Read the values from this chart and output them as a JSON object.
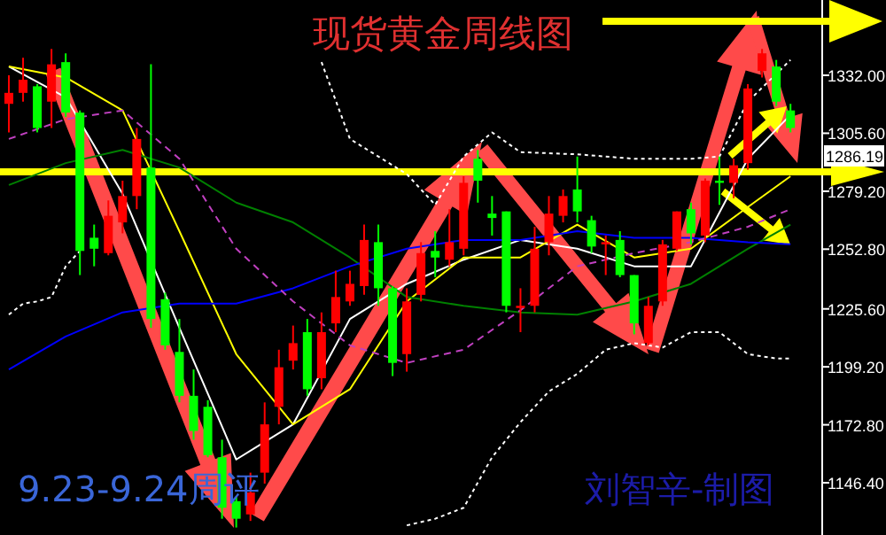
{
  "chart_data": {
    "type": "candlestick",
    "title": "现货黄金周线图",
    "annotations": [
      "9.23-9.24周评",
      "刘智辛-制图",
      "1286.19"
    ],
    "categories": [
      null,
      null,
      null,
      null,
      null,
      null,
      null,
      null,
      null,
      null,
      null,
      null,
      null,
      null,
      null,
      null,
      null,
      null,
      null,
      null,
      null,
      null,
      null,
      null,
      null,
      null,
      null,
      null,
      null,
      null,
      null,
      null,
      null,
      null,
      null,
      null,
      null,
      null,
      null,
      null,
      null,
      null,
      null,
      null,
      null,
      null,
      null,
      null,
      null,
      null,
      null,
      null,
      null,
      null,
      null,
      null
    ],
    "ohlc": [
      [
        1319,
        1332,
        1306,
        1324
      ],
      [
        1324,
        1340,
        1320,
        1330
      ],
      [
        1327,
        1328,
        1306,
        1308
      ],
      [
        1320,
        1344,
        1308,
        1337
      ],
      [
        1338,
        1342,
        1313,
        1315
      ],
      [
        1315,
        1316,
        1241,
        1252
      ],
      [
        1258,
        1264,
        1245,
        1253
      ],
      [
        1251,
        1275,
        1250,
        1268
      ],
      [
        1265,
        1284,
        1260,
        1277
      ],
      [
        1277,
        1308,
        1271,
        1303
      ],
      [
        1290,
        1337,
        1217,
        1221
      ],
      [
        1230,
        1233,
        1207,
        1209
      ],
      [
        1206,
        1221,
        1183,
        1186
      ],
      [
        1186,
        1198,
        1166,
        1170
      ],
      [
        1181,
        1184,
        1158,
        1159
      ],
      [
        1158,
        1166,
        1130,
        1135
      ],
      [
        1138,
        1140,
        1126,
        1130
      ],
      [
        1132,
        1151,
        1129,
        1142
      ],
      [
        1151,
        1183,
        1146,
        1173
      ],
      [
        1181,
        1207,
        1173,
        1199
      ],
      [
        1202,
        1218,
        1198,
        1210
      ],
      [
        1215,
        1221,
        1186,
        1189
      ],
      [
        1194,
        1224,
        1189,
        1215
      ],
      [
        1219,
        1243,
        1215,
        1231
      ],
      [
        1229,
        1243,
        1227,
        1237
      ],
      [
        1236,
        1264,
        1232,
        1257
      ],
      [
        1256,
        1264,
        1227,
        1235
      ],
      [
        1235,
        1236,
        1195,
        1201
      ],
      [
        1205,
        1235,
        1197,
        1229
      ],
      [
        1232,
        1256,
        1229,
        1251
      ],
      [
        1252,
        1261,
        1240,
        1249
      ],
      [
        1248,
        1271,
        1245,
        1256
      ],
      [
        1253,
        1286,
        1250,
        1283
      ],
      [
        1294,
        1298,
        1274,
        1284
      ],
      [
        1269,
        1277,
        1259,
        1267
      ],
      [
        1270,
        1270,
        1224,
        1227
      ],
      [
        1226,
        1235,
        1215,
        1227
      ],
      [
        1227,
        1263,
        1224,
        1253
      ],
      [
        1256,
        1277,
        1250,
        1269
      ],
      [
        1268,
        1280,
        1265,
        1277
      ],
      [
        1280,
        1295,
        1265,
        1270
      ],
      [
        1266,
        1268,
        1251,
        1254
      ],
      [
        1255,
        1259,
        1241,
        1256
      ],
      [
        1257,
        1261,
        1240,
        1241
      ],
      [
        1241,
        1241,
        1214,
        1219
      ],
      [
        1210,
        1231,
        1209,
        1227
      ],
      [
        1229,
        1257,
        1227,
        1255
      ],
      [
        1253,
        1270,
        1252,
        1270
      ],
      [
        1271,
        1274,
        1255,
        1260
      ],
      [
        1259,
        1285,
        1256,
        1284
      ],
      [
        1284,
        1295,
        1273,
        1283
      ],
      [
        1283,
        1294,
        1276,
        1291
      ],
      [
        1292,
        1328,
        1289,
        1326
      ],
      [
        1334,
        1344,
        1331,
        1342
      ],
      [
        1336,
        1339,
        1318,
        1320
      ],
      [
        1316,
        1319,
        1306,
        1308
      ]
    ],
    "colors": [
      "#ff0000",
      "#ff0000",
      "#00ff00",
      "#ff0000",
      "#00ff00",
      "#00ff00",
      "#00ff00",
      "#ff0000",
      "#ff0000",
      "#ff0000",
      "#00ff00",
      "#00ff00",
      "#00ff00",
      "#00ff00",
      "#00ff00",
      "#00ff00",
      "#00ff00",
      "#ff0000",
      "#ff0000",
      "#ff0000",
      "#ff0000",
      "#00ff00",
      "#ff0000",
      "#ff0000",
      "#ff0000",
      "#ff0000",
      "#00ff00",
      "#00ff00",
      "#ff0000",
      "#ff0000",
      "#00ff00",
      "#ff0000",
      "#ff0000",
      "#00ff00",
      "#00ff00",
      "#00ff00",
      "#ff0000",
      "#ff0000",
      "#ff0000",
      "#ff0000",
      "#00ff00",
      "#00ff00",
      "#ff0000",
      "#00ff00",
      "#00ff00",
      "#ff0000",
      "#ff0000",
      "#ff0000",
      "#00ff00",
      "#ff0000",
      "#00ff00",
      "#ff0000",
      "#ff0000",
      "#ff0000",
      "#00ff00",
      "#00ff00"
    ],
    "series": [
      {
        "type": "line",
        "color": "#ffffff",
        "values": [
          1336,
          null,
          null,
          null,
          1322,
          null,
          null,
          null,
          1278,
          null,
          null,
          null,
          1217,
          null,
          null,
          null,
          1157,
          null,
          null,
          null,
          1173,
          null,
          null,
          null,
          1221,
          null,
          null,
          null,
          1237,
          null,
          null,
          null,
          1248,
          null,
          null,
          null,
          1257,
          null,
          null,
          null,
          1253,
          null,
          null,
          null,
          1245,
          null,
          null,
          null,
          1245,
          null,
          null,
          null,
          1294,
          null,
          null,
          1314
        ]
      },
      {
        "type": "line",
        "color": "#ffff00",
        "values": [
          1336,
          null,
          null,
          null,
          1331,
          null,
          null,
          null,
          1316,
          null,
          null,
          null,
          1261,
          null,
          null,
          null,
          1205,
          null,
          null,
          null,
          1173,
          null,
          null,
          null,
          1189,
          null,
          null,
          null,
          1229,
          null,
          null,
          null,
          1249,
          null,
          null,
          null,
          1249,
          null,
          null,
          null,
          1264,
          null,
          null,
          null,
          1249,
          null,
          null,
          null,
          1253,
          null,
          null,
          null,
          1272,
          null,
          null,
          1286
        ]
      },
      {
        "type": "line",
        "color": "#008000",
        "values": [
          1282,
          null,
          null,
          null,
          1292,
          null,
          null,
          null,
          1298,
          null,
          null,
          null,
          1290,
          null,
          null,
          null,
          1274,
          null,
          null,
          null,
          1265,
          null,
          null,
          null,
          1249,
          null,
          null,
          null,
          1231,
          null,
          null,
          null,
          1227,
          null,
          null,
          null,
          1224,
          null,
          null,
          null,
          1223,
          null,
          null,
          null,
          1229,
          null,
          null,
          null,
          1237,
          null,
          null,
          null,
          1253,
          null,
          null,
          1264
        ]
      },
      {
        "type": "line",
        "color": "#0000ff",
        "values": [
          1198,
          null,
          null,
          null,
          1213,
          null,
          null,
          null,
          1224,
          null,
          null,
          null,
          1228,
          null,
          null,
          null,
          1228,
          null,
          null,
          null,
          1235,
          null,
          null,
          null,
          1245,
          null,
          null,
          null,
          1253,
          null,
          null,
          null,
          1257,
          null,
          null,
          null,
          1257,
          null,
          null,
          null,
          1261,
          null,
          null,
          null,
          1258,
          null,
          null,
          null,
          1258,
          null,
          null,
          null,
          1256,
          null,
          null,
          1255
        ]
      },
      {
        "type": "line",
        "color": "#c040c0",
        "line_style": "dashed",
        "values": [
          1303,
          null,
          null,
          null,
          1312,
          null,
          null,
          null,
          1316,
          null,
          null,
          null,
          1294,
          null,
          null,
          null,
          1253,
          null,
          null,
          null,
          1229,
          null,
          null,
          null,
          1209,
          null,
          null,
          null,
          1201,
          null,
          null,
          null,
          1207,
          null,
          null,
          null,
          1225,
          null,
          null,
          null,
          1245,
          null,
          null,
          null,
          1251,
          null,
          null,
          null,
          1256,
          null,
          null,
          null,
          1263,
          null,
          null,
          1271
        ]
      },
      {
        "type": "line",
        "color": "#ffffff",
        "line_style": "dotted",
        "values": [
          null,
          null,
          null,
          null,
          null,
          null,
          null,
          null,
          null,
          null,
          null,
          null,
          null,
          null,
          null,
          null,
          null,
          null,
          null,
          null,
          null,
          null,
          1338,
          null,
          1303,
          null,
          null,
          null,
          1287,
          null,
          1273,
          null,
          1295,
          null,
          1306,
          null,
          1297,
          null,
          null,
          null,
          1296,
          null,
          null,
          null,
          1294,
          null,
          null,
          null,
          1294,
          null,
          1295,
          null,
          1320,
          null,
          null,
          1339
        ]
      },
      {
        "type": "line",
        "color": "#ffffff",
        "line_style": "dotted",
        "values": [
          1223,
          1228,
          1229,
          1231,
          1245,
          1252,
          null,
          null,
          null,
          null,
          null,
          null,
          null,
          null,
          null,
          null,
          null,
          null,
          null,
          null,
          null,
          null,
          null,
          null,
          null,
          null,
          null,
          null,
          null,
          null,
          null,
          null,
          null,
          null,
          null,
          null,
          null,
          null,
          null,
          null,
          null,
          null,
          null,
          null,
          null,
          null,
          null,
          null,
          null,
          null,
          null,
          null,
          null,
          null,
          null,
          null
        ]
      },
      {
        "type": "line",
        "color": "#ffffff",
        "line_style": "dotted",
        "values": [
          null,
          null,
          null,
          null,
          null,
          null,
          null,
          null,
          null,
          null,
          null,
          null,
          null,
          null,
          null,
          null,
          null,
          null,
          null,
          null,
          null,
          null,
          null,
          null,
          null,
          null,
          null,
          null,
          1127,
          null,
          1130,
          null,
          1135,
          null,
          1158,
          null,
          1174,
          null,
          1188,
          null,
          1196,
          null,
          1207,
          null,
          1210,
          null,
          1208,
          null,
          1215,
          null,
          1215,
          null,
          1205,
          null,
          1203,
          1203
        ]
      }
    ],
    "ylim": [
      1122.6,
      1366.3
    ],
    "yticks": [
      {
        "value": 1332,
        "label": "1332.00"
      },
      {
        "value": 1305.6,
        "label": "1305.60"
      },
      {
        "value": 1279.2,
        "label": "1279.20"
      },
      {
        "value": 1252.8,
        "label": "1252.80"
      },
      {
        "value": 1225.6,
        "label": "1225.60"
      },
      {
        "value": 1199.2,
        "label": "1199.20"
      },
      {
        "value": 1172.8,
        "label": "1172.80"
      },
      {
        "value": 1146.4,
        "label": "1146.40"
      }
    ],
    "grid": false
  }
}
